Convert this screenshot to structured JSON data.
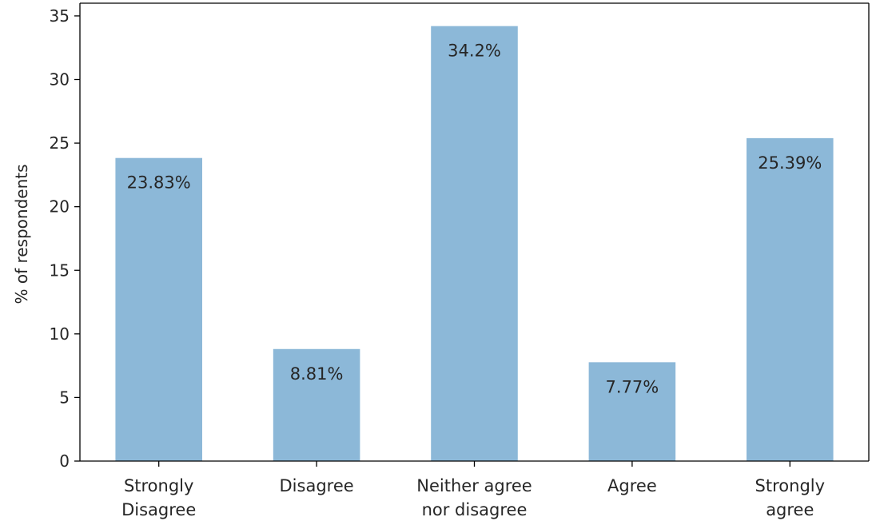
{
  "chart_data": {
    "type": "bar",
    "title": "",
    "xlabel": "",
    "ylabel": "% of respondents",
    "categories": [
      [
        "Strongly",
        "Disagree"
      ],
      [
        "Disagree"
      ],
      [
        "Neither agree",
        "nor disagree"
      ],
      [
        "Agree"
      ],
      [
        "Strongly",
        "agree"
      ]
    ],
    "values": [
      23.83,
      8.81,
      34.2,
      7.77,
      25.39
    ],
    "data_labels": [
      "23.83%",
      "8.81%",
      "34.2%",
      "7.77%",
      "25.39%"
    ],
    "ylim": [
      0,
      36
    ],
    "yticks": [
      0,
      5,
      10,
      15,
      20,
      25,
      30,
      35
    ],
    "grid": false,
    "legend": "none",
    "colors": {
      "bar": "#8cb8d8",
      "axis": "#000000",
      "text": "#262626"
    }
  }
}
